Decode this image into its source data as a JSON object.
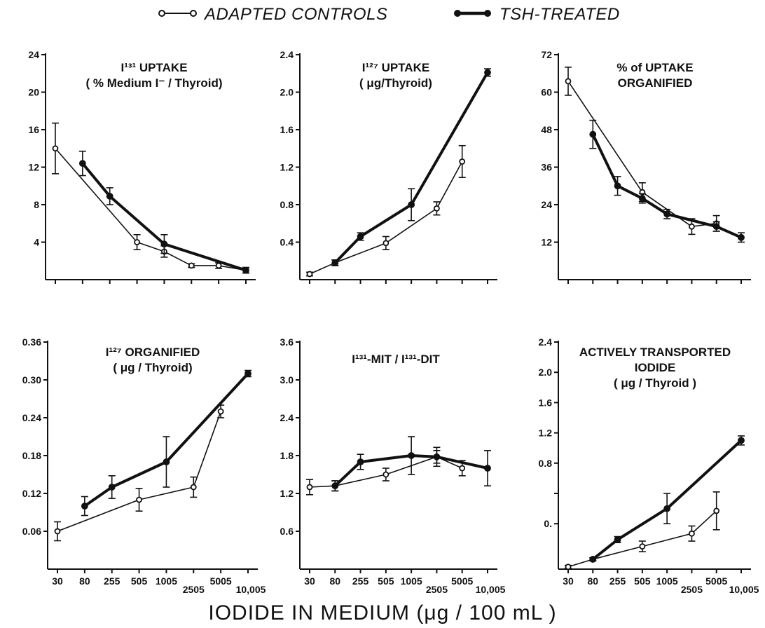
{
  "figure": {
    "legend": {
      "controls_label": "ADAPTED CONTROLS",
      "tsh_label": "TSH-TREATED"
    },
    "xlabel": "IODIDE IN MEDIUM (μg / 100 mL )",
    "x_ticks": [
      "30",
      "80",
      "255",
      "505",
      "1005",
      "2505",
      "5005",
      "10,005"
    ]
  },
  "chart_data": [
    {
      "type": "line",
      "title": "I¹³¹ UPTAKE",
      "subtitle": "( % Medium I⁻ / Thyroid)",
      "ylim": [
        0,
        24
      ],
      "yticks": [
        4,
        8,
        12,
        16,
        20,
        24
      ],
      "ytick_labels": [
        "4",
        "8",
        "12",
        "16",
        "20",
        "24"
      ],
      "categories": [
        "30",
        "80",
        "255",
        "505",
        "1005",
        "2505",
        "5005",
        "10,005"
      ],
      "series": [
        {
          "name": "ADAPTED CONTROLS",
          "values": [
            14,
            null,
            null,
            4,
            3,
            1.5,
            1.5,
            1
          ],
          "errors": [
            2.7,
            null,
            null,
            0.8,
            0.6,
            0.2,
            0.3,
            0.3
          ]
        },
        {
          "name": "TSH-TREATED",
          "values": [
            null,
            12.4,
            8.9,
            null,
            3.8,
            null,
            null,
            1
          ],
          "errors": [
            null,
            1.3,
            0.9,
            null,
            1.0,
            null,
            null,
            0.3
          ]
        }
      ]
    },
    {
      "type": "line",
      "title": "I¹²⁷ UPTAKE",
      "subtitle": "( μg/Thyroid)",
      "ylim": [
        0,
        2.4
      ],
      "yticks": [
        0.4,
        0.8,
        1.2,
        1.6,
        2.0,
        2.4
      ],
      "ytick_labels": [
        "0.4",
        "0.8",
        "1.2",
        "1.6",
        "2.0",
        "2.4"
      ],
      "categories": [
        "30",
        "80",
        "255",
        "505",
        "1005",
        "2505",
        "5005",
        "10,005"
      ],
      "series": [
        {
          "name": "ADAPTED CONTROLS",
          "values": [
            0.06,
            0.18,
            null,
            0.39,
            null,
            0.76,
            1.26,
            null
          ],
          "errors": [
            0.02,
            0.03,
            null,
            0.07,
            null,
            0.07,
            0.17,
            null
          ]
        },
        {
          "name": "TSH-TREATED",
          "values": [
            null,
            0.18,
            0.46,
            null,
            0.8,
            null,
            null,
            2.21
          ],
          "errors": [
            null,
            0.03,
            0.04,
            null,
            0.17,
            null,
            null,
            0.04
          ]
        }
      ]
    },
    {
      "type": "line",
      "title": "% of UPTAKE",
      "subtitle": "ORGANIFIED",
      "ylim": [
        0,
        72
      ],
      "yticks": [
        12,
        24,
        36,
        48,
        60,
        72
      ],
      "ytick_labels": [
        "12",
        "24",
        "36",
        "48",
        "60",
        "72"
      ],
      "categories": [
        "30",
        "80",
        "255",
        "505",
        "1005",
        "2505",
        "5005",
        "10,005"
      ],
      "series": [
        {
          "name": "ADAPTED CONTROLS",
          "values": [
            63.5,
            null,
            null,
            28,
            null,
            17,
            18,
            null
          ],
          "errors": [
            4.5,
            null,
            null,
            3,
            null,
            2.5,
            2.5,
            null
          ]
        },
        {
          "name": "TSH-TREATED",
          "values": [
            null,
            46.5,
            30,
            26,
            21,
            null,
            17,
            13.5
          ],
          "errors": [
            null,
            4.5,
            3,
            1.5,
            1.5,
            null,
            1.5,
            1.5
          ]
        }
      ]
    },
    {
      "type": "line",
      "title": "I¹²⁷ ORGANIFIED",
      "subtitle": "( μg / Thyroid)",
      "ylim": [
        0,
        0.36
      ],
      "yticks": [
        0.06,
        0.12,
        0.18,
        0.24,
        0.3,
        0.36
      ],
      "ytick_labels": [
        "0.06",
        "0.12",
        "0.18",
        "0.24",
        "0.30",
        "0.36"
      ],
      "categories": [
        "30",
        "80",
        "255",
        "505",
        "1005",
        "2505",
        "5005",
        "10,005"
      ],
      "series": [
        {
          "name": "ADAPTED CONTROLS",
          "values": [
            0.06,
            null,
            null,
            0.11,
            null,
            0.13,
            0.25,
            null
          ],
          "errors": [
            0.015,
            null,
            null,
            0.018,
            null,
            0.016,
            0.01,
            null
          ]
        },
        {
          "name": "TSH-TREATED",
          "values": [
            null,
            0.1,
            0.13,
            null,
            0.17,
            null,
            null,
            0.31
          ],
          "errors": [
            null,
            0.015,
            0.018,
            null,
            0.04,
            null,
            null,
            0.005
          ]
        }
      ]
    },
    {
      "type": "line",
      "title": "I¹³¹-MIT / I¹³¹-DIT",
      "subtitle": "",
      "ylim": [
        0,
        3.6
      ],
      "yticks": [
        0.6,
        1.2,
        1.8,
        2.4,
        3.0,
        3.6
      ],
      "ytick_labels": [
        "0.6",
        "1.2",
        "1.8",
        "2.4",
        "3.0",
        "3.6"
      ],
      "categories": [
        "30",
        "80",
        "255",
        "505",
        "1005",
        "2505",
        "5005",
        "10,005"
      ],
      "series": [
        {
          "name": "ADAPTED CONTROLS",
          "values": [
            1.3,
            1.32,
            null,
            1.5,
            null,
            1.78,
            1.6,
            null
          ],
          "errors": [
            0.12,
            0.08,
            null,
            0.1,
            null,
            0.1,
            0.12,
            null
          ]
        },
        {
          "name": "TSH-TREATED",
          "values": [
            null,
            1.32,
            1.7,
            null,
            1.8,
            1.78,
            null,
            1.6
          ],
          "errors": [
            null,
            0.08,
            0.12,
            null,
            0.3,
            0.15,
            null,
            0.28
          ]
        }
      ]
    },
    {
      "type": "line",
      "title": "ACTIVELY TRANSPORTED",
      "subtitle": "IODIDE",
      "subtitle2": "( μg / Thyroid )",
      "ylim": [
        -0.6,
        2.4
      ],
      "yticks": [
        0.0,
        0.4,
        0.8,
        1.2,
        1.6,
        2.0,
        2.4
      ],
      "ytick_labels": [
        "0.",
        "",
        "0.8",
        "1.2",
        "1.6",
        "2.0",
        "2.4"
      ],
      "categories": [
        "30",
        "80",
        "255",
        "505",
        "1005",
        "2505",
        "5005",
        "10,005"
      ],
      "series": [
        {
          "name": "ADAPTED CONTROLS",
          "values": [
            -0.57,
            -0.47,
            null,
            -0.3,
            null,
            -0.13,
            0.17,
            null
          ],
          "errors": [
            0.02,
            0.02,
            null,
            0.07,
            null,
            0.1,
            0.25,
            null
          ]
        },
        {
          "name": "TSH-TREATED",
          "values": [
            null,
            -0.47,
            -0.21,
            null,
            0.2,
            null,
            null,
            1.1
          ],
          "errors": [
            null,
            0.02,
            0.04,
            null,
            0.2,
            null,
            null,
            0.06
          ]
        }
      ]
    }
  ]
}
